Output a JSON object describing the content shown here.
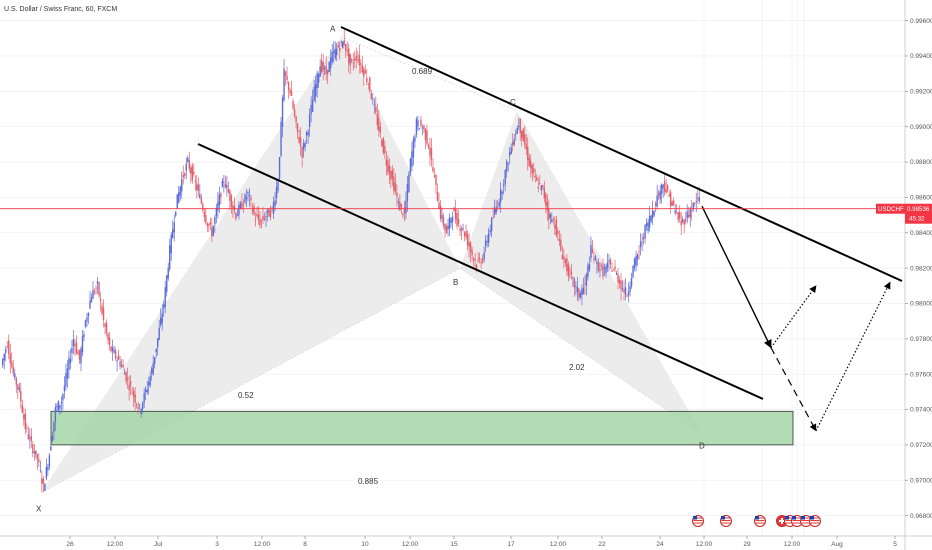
{
  "header": {
    "title": "U.S. Dollar / Swiss Franc, 60, FXCM"
  },
  "price_tag": {
    "symbol": "USDCHF",
    "price": "0.98536",
    "countdown": "45:32",
    "color": "#f23645"
  },
  "chart_data": {
    "type": "candlestick",
    "title": "U.S. Dollar / Swiss Franc, 60, FXCM",
    "ylim": [
      0.9686,
      0.9966
    ],
    "y_ticks": [
      "0.99600",
      "0.99400",
      "0.99200",
      "0.99000",
      "0.98800",
      "0.98600",
      "0.98400",
      "0.98200",
      "0.98000",
      "0.97800",
      "0.97600",
      "0.97400",
      "0.97200",
      "0.97000",
      "0.96800"
    ],
    "x_ticks": [
      "26",
      "12:00",
      "Jul",
      "3",
      "12:00",
      "8",
      "10",
      "12:00",
      "15",
      "17",
      "12:00",
      "22",
      "24",
      "12:00",
      "29",
      "12:00",
      "Aug",
      "5"
    ],
    "current_price": 0.98536,
    "pattern_points": [
      {
        "label": "X",
        "price": 0.9693
      },
      {
        "label": "A",
        "price": 0.9951
      },
      {
        "label": "B",
        "price": 0.982
      },
      {
        "label": "C",
        "price": 0.9909
      },
      {
        "label": "D",
        "price": 0.9726
      }
    ],
    "ratios": [
      "0.689",
      "0.52",
      "2.02",
      "0.885"
    ],
    "zone": {
      "top": 0.9739,
      "bottom": 0.972,
      "color": "#a5d6a7"
    },
    "price_path": [
      0.9765,
      0.9778,
      0.976,
      0.975,
      0.973,
      0.972,
      0.9712,
      0.9696,
      0.9715,
      0.974,
      0.9745,
      0.9762,
      0.978,
      0.9768,
      0.979,
      0.9805,
      0.981,
      0.979,
      0.9775,
      0.977,
      0.9765,
      0.9756,
      0.9748,
      0.974,
      0.975,
      0.9762,
      0.978,
      0.98,
      0.983,
      0.9855,
      0.987,
      0.988,
      0.987,
      0.986,
      0.9848,
      0.984,
      0.9856,
      0.987,
      0.986,
      0.985,
      0.9856,
      0.9862,
      0.985,
      0.9846,
      0.985,
      0.9852,
      0.987,
      0.993,
      0.992,
      0.99,
      0.9885,
      0.99,
      0.992,
      0.9935,
      0.993,
      0.994,
      0.9945,
      0.9948,
      0.9935,
      0.994,
      0.9933,
      0.9925,
      0.991,
      0.9895,
      0.988,
      0.987,
      0.9856,
      0.985,
      0.988,
      0.9902,
      0.99,
      0.989,
      0.987,
      0.985,
      0.984,
      0.9852,
      0.9845,
      0.984,
      0.983,
      0.9822,
      0.9826,
      0.984,
      0.9852,
      0.9862,
      0.9878,
      0.9892,
      0.9902,
      0.989,
      0.9876,
      0.9868,
      0.9864,
      0.985,
      0.9845,
      0.983,
      0.982,
      0.9812,
      0.9805,
      0.981,
      0.983,
      0.9822,
      0.9818,
      0.9822,
      0.9818,
      0.981,
      0.9805,
      0.982,
      0.983,
      0.9842,
      0.985,
      0.986,
      0.9868,
      0.986,
      0.9852,
      0.9845,
      0.985,
      0.9855,
      0.986
    ],
    "projections": [
      {
        "style": "solid",
        "points": [
          [
            0.9855,
            0
          ],
          [
            0.9775,
            1
          ]
        ]
      },
      {
        "style": "dashed",
        "points": [
          [
            0.9775,
            1
          ],
          [
            0.9728,
            2
          ]
        ]
      },
      {
        "style": "dotted",
        "points": [
          [
            0.9775,
            1
          ],
          [
            0.981,
            2
          ]
        ]
      },
      {
        "style": "dotted",
        "points": [
          [
            0.9728,
            2
          ],
          [
            0.9812,
            3
          ]
        ]
      }
    ]
  },
  "colors": {
    "up": "#5b6bd6",
    "down": "#e35d6a",
    "triangle": "#e6e6e6",
    "line": "#000000",
    "grid": "#eeeeee"
  },
  "footer_icons": [
    "us-flag-icon",
    "us-flag-icon",
    "us-flag-icon",
    "ch-flag-icon",
    "us-flag-icon",
    "us-flag-icon",
    "us-flag-icon",
    "us-flag-icon"
  ]
}
